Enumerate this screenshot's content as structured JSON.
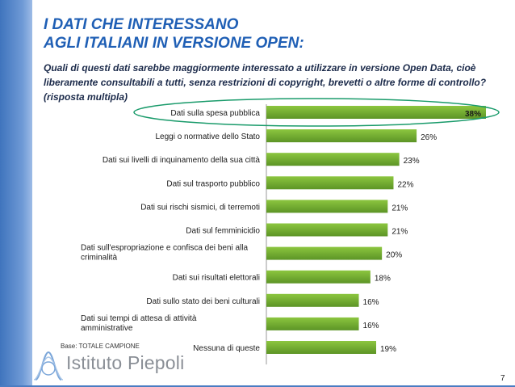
{
  "title_lines": [
    "I DATI  CHE INTERESSANO",
    "AGLI ITALIANI IN VERSIONE OPEN:"
  ],
  "question": "Quali di questi dati sarebbe maggiormente interessato a utilizzare in versione Open Data, cioè liberamente consultabili a tutti, senza restrizioni di copyright, brevetti o altre forme di controllo? (risposta multipla)",
  "footnote": "Base: TOTALE CAMPIONE",
  "logo_text": "Istituto Piepoli",
  "page_number": "7",
  "colors": {
    "bar": "#8cc63f",
    "bar_dark": "#5c9426",
    "highlight_ellipse": "#1a9b6b",
    "title": "#1f5fb5"
  },
  "chart_data": {
    "type": "bar",
    "orientation": "horizontal",
    "categories": [
      "Dati sulla spesa pubblica",
      "Leggi o normative dello Stato",
      "Dati sui livelli di inquinamento della sua città",
      "Dati sul trasporto pubblico",
      "Dati sui rischi sismici, di terremoti",
      "Dati sul femminicidio",
      "Dati sull'espropriazione e confisca dei beni alla criminalità",
      "Dati sui risultati elettorali",
      "Dati sullo stato dei beni culturali",
      "Dati sui tempi di attesa di attività amministrative",
      "Nessuna di queste"
    ],
    "values": [
      38,
      26,
      23,
      22,
      21,
      21,
      20,
      18,
      16,
      16,
      19
    ],
    "value_labels": [
      "38%",
      "26%",
      "23%",
      "22%",
      "21%",
      "21%",
      "20%",
      "18%",
      "16%",
      "16%",
      "19%"
    ],
    "highlighted_index": 0,
    "xlim": [
      0,
      38
    ]
  }
}
